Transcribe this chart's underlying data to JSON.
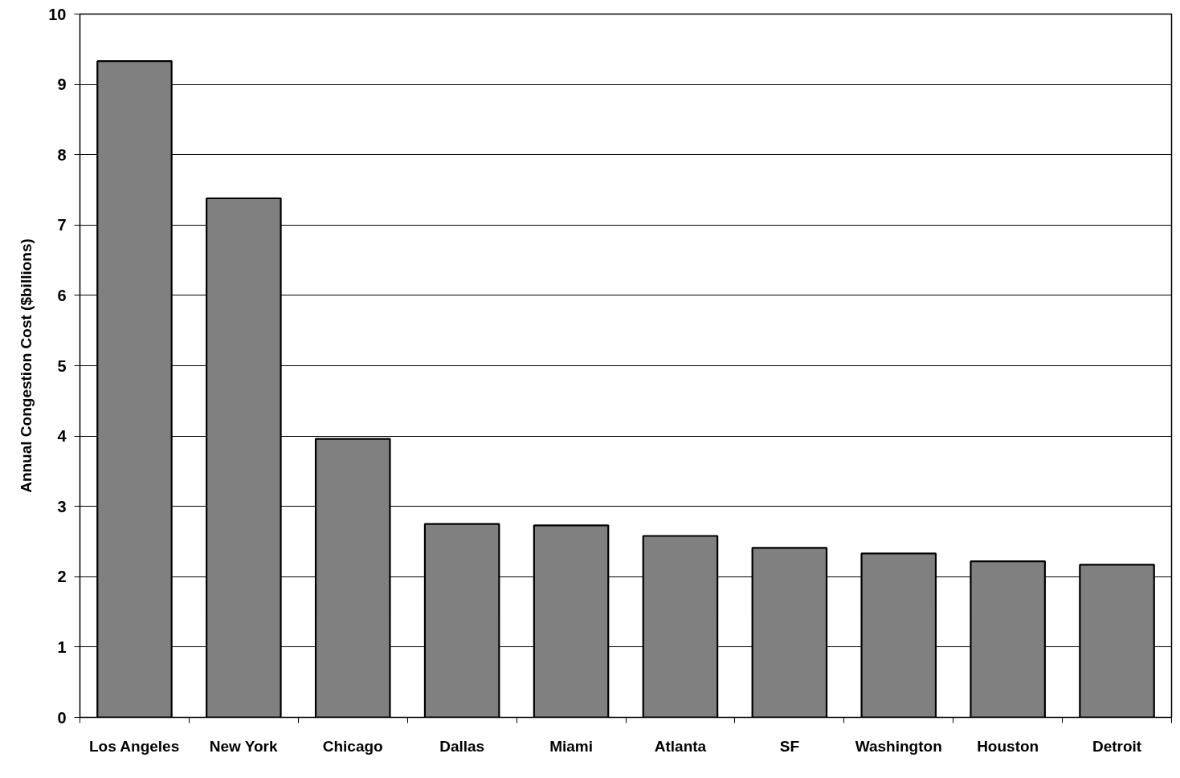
{
  "chart_data": {
    "type": "bar",
    "ylabel": "Annual Congestion Cost ($billions)",
    "categories": [
      "Los Angeles",
      "New York",
      "Chicago",
      "Dallas",
      "Miami",
      "Atlanta",
      "SF",
      "Washington",
      "Houston",
      "Detroit"
    ],
    "values": [
      9.33,
      7.38,
      3.96,
      2.75,
      2.73,
      2.58,
      2.41,
      2.33,
      2.22,
      2.17
    ],
    "color": "#808080",
    "ylim": [
      0,
      10
    ],
    "yticks": [
      0,
      1,
      2,
      3,
      4,
      5,
      6,
      7,
      8,
      9,
      10
    ],
    "grid": "y"
  }
}
